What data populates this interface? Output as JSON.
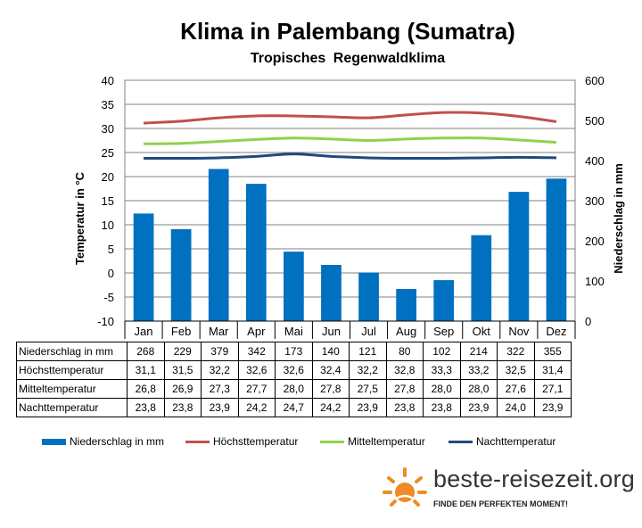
{
  "chart_data": {
    "type": "bar+line",
    "title": "Klima in Palembang (Sumatra)",
    "subtitle": "Tropisches  Regenwaldklima",
    "ylabel_left": "Temperatur in °C",
    "ylabel_right": "Niederschlag in mm",
    "ylim_left": [
      -10,
      40
    ],
    "ylim_right": [
      0,
      600
    ],
    "yticks_left": [
      "-10",
      "-5",
      "0",
      "5",
      "10",
      "15",
      "20",
      "25",
      "30",
      "35",
      "40"
    ],
    "yticks_right": [
      "0",
      "100",
      "200",
      "300",
      "400",
      "500",
      "600"
    ],
    "grid": true,
    "legend_position": "bottom",
    "categories": [
      "Jan",
      "Feb",
      "Mar",
      "Apr",
      "Mai",
      "Jun",
      "Jul",
      "Aug",
      "Sep",
      "Okt",
      "Nov",
      "Dez"
    ],
    "series": [
      {
        "name": "Niederschlag in mm",
        "kind": "bar",
        "axis": "right",
        "color": "#0070C0",
        "values": [
          268,
          229,
          379,
          342,
          173,
          140,
          121,
          80,
          102,
          214,
          322,
          355
        ]
      },
      {
        "name": "Höchsttemperatur",
        "kind": "line",
        "axis": "left",
        "color": "#C0504D",
        "values": [
          31.1,
          31.5,
          32.2,
          32.6,
          32.6,
          32.4,
          32.2,
          32.8,
          33.3,
          33.2,
          32.5,
          31.4
        ]
      },
      {
        "name": "Mitteltemperatur",
        "kind": "line",
        "axis": "left",
        "color": "#92D050",
        "values": [
          26.8,
          26.9,
          27.3,
          27.7,
          28.0,
          27.8,
          27.5,
          27.8,
          28.0,
          28.0,
          27.6,
          27.1
        ]
      },
      {
        "name": "Nachttemperatur",
        "kind": "line",
        "axis": "left",
        "color": "#1F497D",
        "values": [
          23.8,
          23.8,
          23.9,
          24.2,
          24.7,
          24.2,
          23.9,
          23.8,
          23.8,
          23.9,
          24.0,
          23.9
        ]
      }
    ]
  },
  "table": {
    "rows": [
      {
        "label": "Niederschlag in mm",
        "values": [
          "268",
          "229",
          "379",
          "342",
          "173",
          "140",
          "121",
          "80",
          "102",
          "214",
          "322",
          "355"
        ]
      },
      {
        "label": "Höchsttemperatur",
        "values": [
          "31,1",
          "31,5",
          "32,2",
          "32,6",
          "32,6",
          "32,4",
          "32,2",
          "32,8",
          "33,3",
          "33,2",
          "32,5",
          "31,4"
        ]
      },
      {
        "label": "Mitteltemperatur",
        "values": [
          "26,8",
          "26,9",
          "27,3",
          "27,7",
          "28,0",
          "27,8",
          "27,5",
          "27,8",
          "28,0",
          "28,0",
          "27,6",
          "27,1"
        ]
      },
      {
        "label": "Nachttemperatur",
        "values": [
          "23,8",
          "23,8",
          "23,9",
          "24,2",
          "24,7",
          "24,2",
          "23,9",
          "23,8",
          "23,8",
          "23,9",
          "24,0",
          "23,9"
        ]
      }
    ]
  },
  "brand": {
    "name": "beste-reisezeit.org",
    "tagline": "FINDE DEN PERFEKTEN MOMENT!",
    "logo_icon": "sun-icon",
    "accent": "#F08A24"
  }
}
